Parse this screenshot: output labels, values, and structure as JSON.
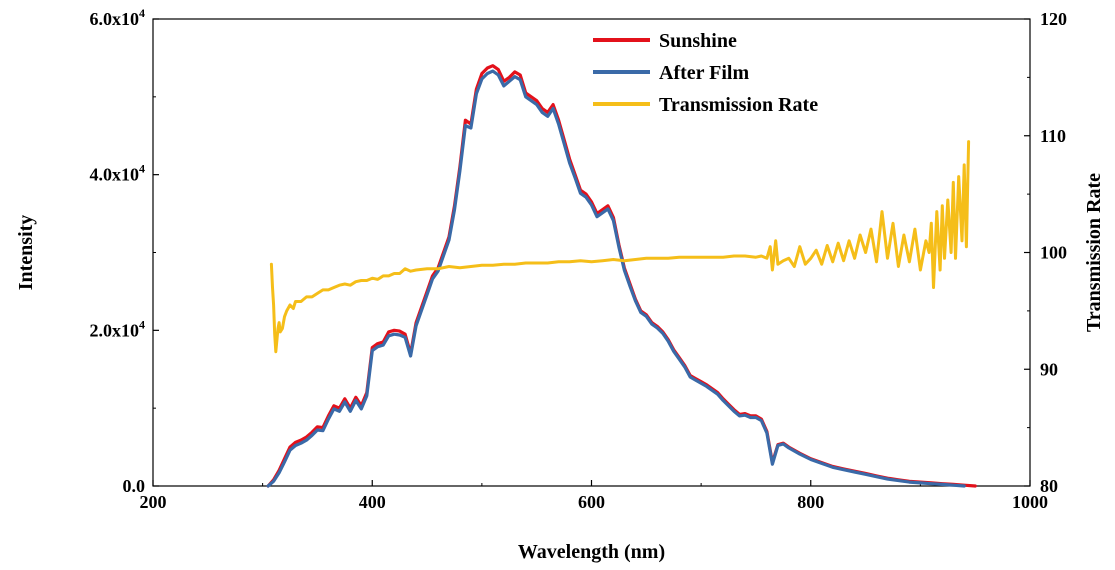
{
  "chart_data": {
    "type": "line",
    "title": "",
    "xlabel": "Wavelength (nm)",
    "ylabel": "Intensity",
    "y2label": "Transmission Rate",
    "xlim": [
      200,
      1000
    ],
    "ylim": [
      0,
      60000
    ],
    "y2lim": [
      80,
      120
    ],
    "xticks": [
      200,
      400,
      600,
      800,
      1000
    ],
    "xtick_labels": [
      "200",
      "400",
      "600",
      "800",
      "1000"
    ],
    "yticks": [
      0,
      20000,
      40000,
      60000
    ],
    "ytick_labels": [
      {
        "mantissa": "0.0",
        "exp": ""
      },
      {
        "mantissa": "2.0x10",
        "exp": "4"
      },
      {
        "mantissa": "4.0x10",
        "exp": "4"
      },
      {
        "mantissa": "6.0x10",
        "exp": "4"
      }
    ],
    "y2ticks": [
      80,
      90,
      100,
      110,
      120
    ],
    "y2tick_labels": [
      "80",
      "90",
      "100",
      "110",
      "120"
    ],
    "grid": false,
    "legend_position": "top-center",
    "series": [
      {
        "name": "Sunshine",
        "color": "#e3111b",
        "axis": "left",
        "x": [
          305,
          310,
          315,
          320,
          325,
          330,
          335,
          340,
          345,
          350,
          355,
          360,
          365,
          370,
          375,
          380,
          385,
          390,
          395,
          400,
          405,
          410,
          415,
          420,
          425,
          430,
          435,
          440,
          445,
          450,
          455,
          460,
          465,
          470,
          475,
          480,
          485,
          490,
          495,
          500,
          505,
          510,
          515,
          520,
          525,
          530,
          535,
          540,
          545,
          550,
          555,
          560,
          565,
          570,
          575,
          580,
          585,
          590,
          595,
          600,
          605,
          610,
          615,
          620,
          625,
          630,
          635,
          640,
          645,
          650,
          655,
          660,
          665,
          670,
          675,
          680,
          685,
          690,
          695,
          700,
          705,
          710,
          715,
          720,
          725,
          730,
          735,
          740,
          745,
          750,
          755,
          760,
          765,
          770,
          775,
          780,
          790,
          800,
          810,
          820,
          830,
          840,
          850,
          860,
          870,
          880,
          890,
          900,
          910,
          920,
          930,
          940,
          950
        ],
        "y": [
          0,
          800,
          2000,
          3500,
          5000,
          5600,
          5900,
          6300,
          6900,
          7600,
          7500,
          9000,
          10300,
          10000,
          11200,
          10000,
          11400,
          10300,
          12000,
          17800,
          18300,
          18500,
          19800,
          20000,
          19900,
          19500,
          17000,
          21000,
          23000,
          25000,
          27000,
          28000,
          30000,
          32000,
          36000,
          41000,
          47000,
          46500,
          51000,
          53000,
          53700,
          54000,
          53500,
          52000,
          52500,
          53200,
          52800,
          50500,
          50000,
          49500,
          48500,
          48000,
          49000,
          47000,
          44500,
          42000,
          40000,
          38000,
          37500,
          36500,
          35000,
          35500,
          36000,
          34500,
          31000,
          28000,
          26000,
          24000,
          22500,
          22000,
          21000,
          20500,
          19800,
          18800,
          17500,
          16500,
          15500,
          14200,
          13800,
          13400,
          13000,
          12500,
          12000,
          11200,
          10500,
          9800,
          9200,
          9300,
          9000,
          9000,
          8600,
          7000,
          3000,
          5300,
          5500,
          5000,
          4200,
          3500,
          3000,
          2500,
          2200,
          1900,
          1600,
          1300,
          1000,
          800,
          600,
          500,
          400,
          300,
          200,
          100,
          0
        ]
      },
      {
        "name": "After Film",
        "color": "#3a6aa8",
        "axis": "left",
        "x": [
          305,
          310,
          315,
          320,
          325,
          330,
          335,
          340,
          345,
          350,
          355,
          360,
          365,
          370,
          375,
          380,
          385,
          390,
          395,
          400,
          405,
          410,
          415,
          420,
          425,
          430,
          435,
          440,
          445,
          450,
          455,
          460,
          465,
          470,
          475,
          480,
          485,
          490,
          495,
          500,
          505,
          510,
          515,
          520,
          525,
          530,
          535,
          540,
          545,
          550,
          555,
          560,
          565,
          570,
          575,
          580,
          585,
          590,
          595,
          600,
          605,
          610,
          615,
          620,
          625,
          630,
          635,
          640,
          645,
          650,
          655,
          660,
          665,
          670,
          675,
          680,
          685,
          690,
          695,
          700,
          705,
          710,
          715,
          720,
          725,
          730,
          735,
          740,
          745,
          750,
          755,
          760,
          765,
          770,
          775,
          780,
          790,
          800,
          810,
          820,
          830,
          840,
          850,
          860,
          870,
          880,
          890,
          900,
          910,
          920,
          930,
          940
        ],
        "y": [
          0,
          600,
          1700,
          3100,
          4600,
          5200,
          5500,
          5900,
          6500,
          7200,
          7100,
          8600,
          9900,
          9600,
          10800,
          9600,
          11000,
          9900,
          11600,
          17400,
          17900,
          18100,
          19300,
          19500,
          19400,
          19100,
          16700,
          20600,
          22600,
          24600,
          26600,
          27600,
          29600,
          31600,
          35500,
          40500,
          46300,
          46000,
          50400,
          52300,
          53000,
          53300,
          52800,
          51400,
          52000,
          52600,
          52200,
          50000,
          49500,
          49000,
          48000,
          47500,
          48500,
          46500,
          44000,
          41500,
          39600,
          37600,
          37100,
          36100,
          34600,
          35100,
          35600,
          34100,
          30700,
          27700,
          25700,
          23800,
          22300,
          21800,
          20800,
          20300,
          19600,
          18600,
          17300,
          16300,
          15300,
          14000,
          13600,
          13200,
          12800,
          12300,
          11800,
          11000,
          10300,
          9600,
          9000,
          9100,
          8800,
          8800,
          8400,
          6800,
          2800,
          5200,
          5400,
          4900,
          4100,
          3400,
          2900,
          2400,
          2100,
          1800,
          1500,
          1200,
          900,
          700,
          500,
          400,
          300,
          200,
          100,
          0
        ]
      },
      {
        "name": "Transmission Rate",
        "color": "#f5be19",
        "axis": "right",
        "x": [
          308,
          309,
          310,
          311,
          312,
          313,
          314,
          315,
          316,
          318,
          320,
          322,
          325,
          328,
          330,
          335,
          340,
          345,
          350,
          355,
          360,
          365,
          370,
          375,
          380,
          385,
          390,
          395,
          400,
          405,
          410,
          415,
          420,
          425,
          430,
          435,
          440,
          450,
          460,
          470,
          480,
          490,
          500,
          510,
          520,
          530,
          540,
          550,
          560,
          570,
          580,
          590,
          600,
          610,
          620,
          630,
          640,
          650,
          660,
          670,
          680,
          690,
          700,
          710,
          720,
          730,
          740,
          750,
          755,
          760,
          763,
          765,
          768,
          770,
          775,
          780,
          785,
          790,
          795,
          800,
          805,
          810,
          815,
          820,
          825,
          830,
          835,
          840,
          845,
          850,
          855,
          860,
          865,
          870,
          875,
          880,
          885,
          890,
          895,
          900,
          905,
          908,
          910,
          912,
          915,
          918,
          920,
          922,
          925,
          928,
          930,
          932,
          935,
          938,
          940,
          942,
          944
        ],
        "y": [
          99,
          97,
          95.5,
          93,
          91.5,
          92.5,
          93.5,
          94,
          93.2,
          93.5,
          94.5,
          95,
          95.5,
          95.2,
          95.8,
          95.8,
          96.2,
          96.2,
          96.5,
          96.8,
          96.8,
          97,
          97.2,
          97.3,
          97.2,
          97.5,
          97.6,
          97.6,
          97.8,
          97.7,
          98,
          98,
          98.2,
          98.2,
          98.6,
          98.4,
          98.5,
          98.6,
          98.6,
          98.8,
          98.7,
          98.8,
          98.9,
          98.9,
          99,
          99,
          99.1,
          99.1,
          99.1,
          99.2,
          99.2,
          99.3,
          99.2,
          99.3,
          99.4,
          99.3,
          99.4,
          99.5,
          99.5,
          99.5,
          99.6,
          99.6,
          99.6,
          99.6,
          99.6,
          99.7,
          99.7,
          99.6,
          99.7,
          99.5,
          100.5,
          98.5,
          101,
          99,
          99.3,
          99.5,
          98.8,
          100.5,
          99,
          99.5,
          100.2,
          99,
          100.6,
          99.2,
          100.8,
          99.3,
          101,
          99.5,
          101.5,
          100,
          102,
          99.2,
          103.5,
          99.5,
          102.5,
          98.8,
          101.5,
          99.2,
          102,
          98.5,
          101,
          100,
          102.5,
          97,
          103.5,
          98.5,
          104,
          99.5,
          104.5,
          100,
          106,
          99.5,
          106.5,
          101,
          107.5,
          100.5,
          109.5
        ]
      }
    ]
  }
}
